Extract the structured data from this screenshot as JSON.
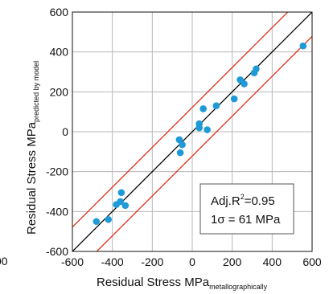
{
  "chart_data": {
    "type": "scatter",
    "xlabel": "Residual Stress MPa",
    "xlabel_sub": "metallographically",
    "ylabel": "Residual Stress MPa",
    "ylabel_sub": "predicted by model",
    "xlim": [
      -600,
      600
    ],
    "ylim": [
      -600,
      600
    ],
    "xticks": [
      "-600",
      "-400",
      "-200",
      "0",
      "200",
      "400",
      "600"
    ],
    "yticks": [
      "-600",
      "-400",
      "-200",
      "0",
      "200",
      "400",
      "600"
    ],
    "left_clipped_tick": "00",
    "grid": true,
    "points": [
      {
        "x": -480,
        "y": -450
      },
      {
        "x": -420,
        "y": -440
      },
      {
        "x": -380,
        "y": -365
      },
      {
        "x": -360,
        "y": -350
      },
      {
        "x": -355,
        "y": -305
      },
      {
        "x": -335,
        "y": -370
      },
      {
        "x": -65,
        "y": -40
      },
      {
        "x": -60,
        "y": -105
      },
      {
        "x": -50,
        "y": -65
      },
      {
        "x": 35,
        "y": 20
      },
      {
        "x": 35,
        "y": 40
      },
      {
        "x": 55,
        "y": 115
      },
      {
        "x": 75,
        "y": 10
      },
      {
        "x": 120,
        "y": 130
      },
      {
        "x": 210,
        "y": 165
      },
      {
        "x": 240,
        "y": 260
      },
      {
        "x": 260,
        "y": 240
      },
      {
        "x": 310,
        "y": 295
      },
      {
        "x": 320,
        "y": 315
      },
      {
        "x": 555,
        "y": 430
      }
    ],
    "fit_line": {
      "slope": 1,
      "intercept": 0,
      "color": "#000000"
    },
    "band": {
      "offset": 122,
      "color": "#e8301c"
    },
    "point_color": "#1e9ad6",
    "annotation": {
      "line1_prefix": "Adj.R",
      "line1_sup": "2",
      "line1_suffix": "=0.95",
      "line2": "1σ = 61 MPa"
    }
  }
}
